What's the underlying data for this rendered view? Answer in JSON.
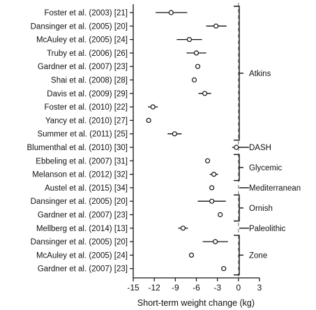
{
  "chart_data": {
    "type": "scatter",
    "xlabel": "Short-term weight change (kg)",
    "xlim": [
      -15,
      3
    ],
    "xticks": [
      "-15",
      "-12",
      "-9",
      "-6",
      "-3",
      "0",
      "3"
    ],
    "reference_line_x": 0,
    "grid": false,
    "studies": [
      {
        "label": "Foster et al. (2003) [21]",
        "estimate": -9.6,
        "lower": -11.8,
        "upper": -7.3
      },
      {
        "label": "Dansinger et al. (2005) [20]",
        "estimate": -3.2,
        "lower": -4.6,
        "upper": -1.7
      },
      {
        "label": "McAuley et al. (2005) [24]",
        "estimate": -7.0,
        "lower": -8.8,
        "upper": -5.2
      },
      {
        "label": "Truby et al. (2006) [26]",
        "estimate": -6.0,
        "lower": -7.4,
        "upper": -4.6
      },
      {
        "label": "Gardner et al. (2007) [23]",
        "estimate": -5.8,
        "lower": -6.1,
        "upper": -5.5
      },
      {
        "label": "Shai et al. (2008) [28]",
        "estimate": -6.3,
        "lower": -6.6,
        "upper": -6.0
      },
      {
        "label": "Davis et al. (2009) [29]",
        "estimate": -4.8,
        "lower": -5.7,
        "upper": -3.9
      },
      {
        "label": "Foster et al. (2010) [22]",
        "estimate": -12.2,
        "lower": -12.9,
        "upper": -11.5
      },
      {
        "label": "Yancy et al. (2010) [27]",
        "estimate": -12.8,
        "lower": -13.1,
        "upper": -12.5
      },
      {
        "label": "Summer et al. (2011) [25]",
        "estimate": -9.1,
        "lower": -10.1,
        "upper": -8.1
      },
      {
        "label": "Blumenthal et al. (2010) [30]",
        "estimate": -0.3,
        "lower": -0.9,
        "upper": 0.3
      },
      {
        "label": "Ebbeling et al. (2007) [31]",
        "estimate": -4.4,
        "lower": -4.7,
        "upper": -4.1
      },
      {
        "label": "Melanson et al. (2012) [32]",
        "estimate": -3.5,
        "lower": -4.1,
        "upper": -2.9
      },
      {
        "label": "Austel et al. (2015) [34]",
        "estimate": -3.8,
        "lower": -4.1,
        "upper": -3.5
      },
      {
        "label": "Dansinger et al. (2005) [20]",
        "estimate": -3.8,
        "lower": -5.8,
        "upper": -1.8
      },
      {
        "label": "Gardner et al. (2007) [23]",
        "estimate": -2.6,
        "lower": -2.9,
        "upper": -2.3
      },
      {
        "label": "Mellberg et al. (2014) [13]",
        "estimate": -7.9,
        "lower": -8.6,
        "upper": -7.2
      },
      {
        "label": "Dansinger et al. (2005) [20]",
        "estimate": -3.3,
        "lower": -5.1,
        "upper": -1.5
      },
      {
        "label": "McAuley et al. (2005) [24]",
        "estimate": -6.7,
        "lower": -7.0,
        "upper": -6.4
      },
      {
        "label": "Gardner et al. (2007) [23]",
        "estimate": -2.1,
        "lower": -2.4,
        "upper": -1.8
      }
    ],
    "groups": [
      {
        "name": "Atkins",
        "first": 0,
        "last": 9
      },
      {
        "name": "DASH",
        "first": 10,
        "last": 10
      },
      {
        "name": "Glycemic",
        "first": 11,
        "last": 12
      },
      {
        "name": "Mediterranean",
        "first": 13,
        "last": 13
      },
      {
        "name": "Ornish",
        "first": 14,
        "last": 15
      },
      {
        "name": "Paleolithic",
        "first": 16,
        "last": 16
      },
      {
        "name": "Zone",
        "first": 17,
        "last": 19
      }
    ]
  }
}
